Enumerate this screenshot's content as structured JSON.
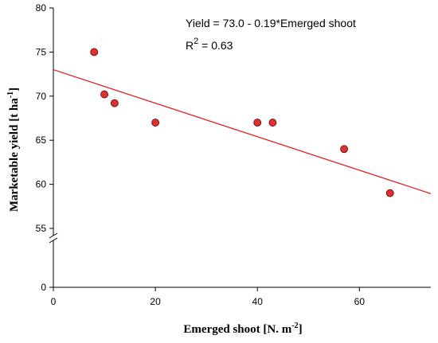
{
  "chart_data": {
    "type": "scatter",
    "xlabel": "Emerged shoot [N.  m",
    "xlabel_sup": "-2",
    "xlabel_suffix": "]",
    "ylabel": "Marketable yield  [t ha",
    "ylabel_sup": "-1",
    "ylabel_suffix": "]",
    "x_ticks": [
      0,
      20,
      40,
      60
    ],
    "y_ticks_lower": [
      0
    ],
    "y_ticks_upper": [
      55,
      60,
      65,
      70,
      75,
      80
    ],
    "xlim": [
      0,
      74
    ],
    "ylim_upper": [
      55,
      80
    ],
    "y_axis_break": true,
    "grid": false,
    "points": [
      {
        "x": 8,
        "y": 75.0
      },
      {
        "x": 10,
        "y": 70.2
      },
      {
        "x": 12,
        "y": 69.2
      },
      {
        "x": 20,
        "y": 67.0
      },
      {
        "x": 40,
        "y": 67.0
      },
      {
        "x": 43,
        "y": 67.0
      },
      {
        "x": 57,
        "y": 64.0
      },
      {
        "x": 66,
        "y": 59.0
      }
    ],
    "marker_color": "#e03030",
    "fit_line": {
      "intercept": 73.0,
      "slope": -0.19,
      "color": "#e02020"
    },
    "equation_text": "Yield = 73.0  - 0.19*Emerged shoot",
    "r2_text": "R",
    "r2_sup": "2",
    "r2_value": " = 0.63"
  }
}
